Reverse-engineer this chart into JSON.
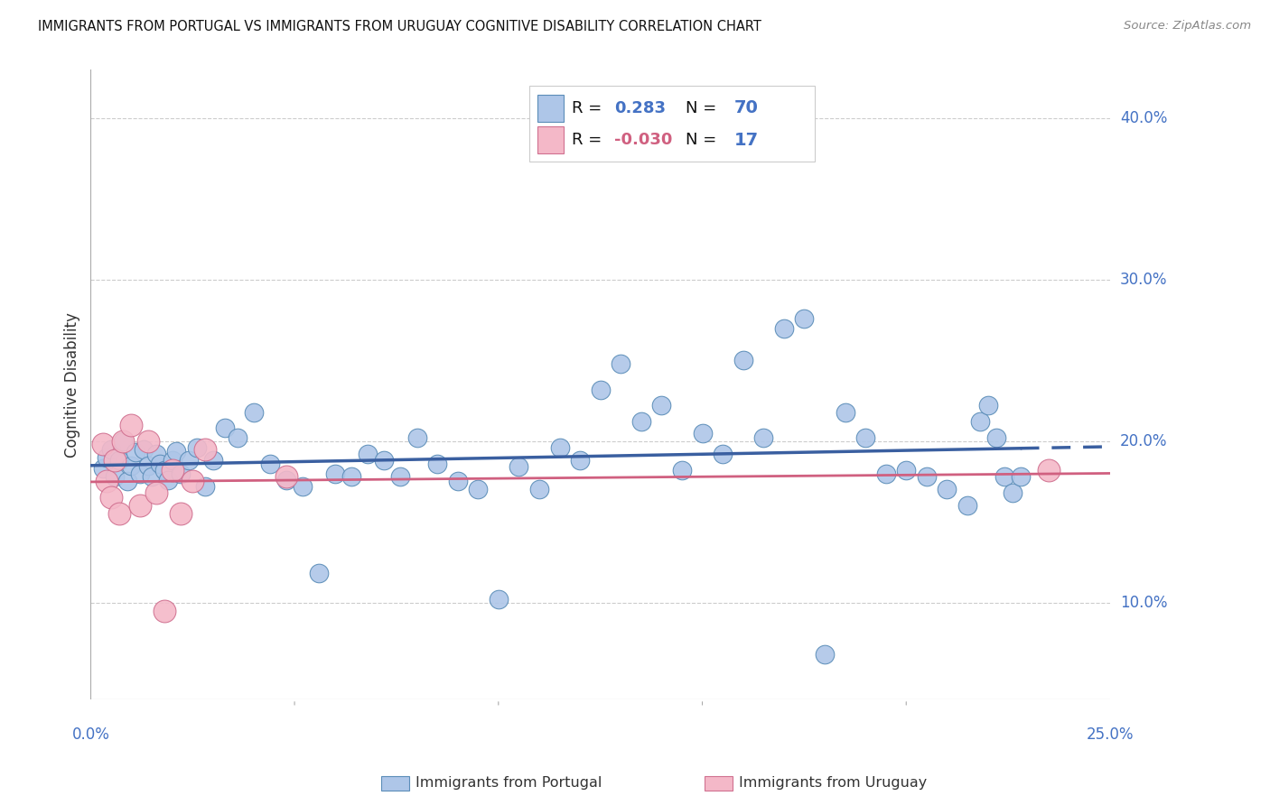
{
  "title": "IMMIGRANTS FROM PORTUGAL VS IMMIGRANTS FROM URUGUAY COGNITIVE DISABILITY CORRELATION CHART",
  "source": "Source: ZipAtlas.com",
  "ylabel": "Cognitive Disability",
  "ytick_vals": [
    0.1,
    0.2,
    0.3,
    0.4
  ],
  "ytick_labels": [
    "10.0%",
    "20.0%",
    "30.0%",
    "40.0%"
  ],
  "xmin": 0.0,
  "xmax": 0.25,
  "ymin": 0.04,
  "ymax": 0.43,
  "legend_label1": "Immigrants from Portugal",
  "legend_label2": "Immigrants from Uruguay",
  "R1": "0.283",
  "N1": "70",
  "R2": "-0.030",
  "N2": "17",
  "color_portugal_fill": "#aec6e8",
  "color_portugal_edge": "#5b8db8",
  "color_uruguay_fill": "#f4b8c8",
  "color_uruguay_edge": "#d07090",
  "color_line1": "#3a5fa0",
  "color_line2": "#d06080",
  "color_axis_text": "#4472c4",
  "color_grid": "#cccccc",
  "color_border": "#aaaaaa",
  "portugal_x": [
    0.003,
    0.004,
    0.005,
    0.006,
    0.007,
    0.008,
    0.009,
    0.01,
    0.011,
    0.012,
    0.013,
    0.014,
    0.015,
    0.016,
    0.017,
    0.018,
    0.019,
    0.02,
    0.021,
    0.022,
    0.024,
    0.026,
    0.028,
    0.03,
    0.033,
    0.036,
    0.04,
    0.044,
    0.048,
    0.052,
    0.056,
    0.06,
    0.064,
    0.068,
    0.072,
    0.076,
    0.08,
    0.085,
    0.09,
    0.095,
    0.1,
    0.105,
    0.11,
    0.115,
    0.12,
    0.125,
    0.13,
    0.135,
    0.14,
    0.145,
    0.15,
    0.155,
    0.16,
    0.165,
    0.17,
    0.175,
    0.18,
    0.185,
    0.19,
    0.195,
    0.2,
    0.205,
    0.21,
    0.215,
    0.218,
    0.22,
    0.222,
    0.224,
    0.226,
    0.228
  ],
  "portugal_y": [
    0.183,
    0.19,
    0.195,
    0.178,
    0.188,
    0.2,
    0.175,
    0.185,
    0.193,
    0.18,
    0.195,
    0.185,
    0.178,
    0.192,
    0.186,
    0.182,
    0.176,
    0.188,
    0.194,
    0.18,
    0.188,
    0.196,
    0.172,
    0.188,
    0.208,
    0.202,
    0.218,
    0.186,
    0.176,
    0.172,
    0.118,
    0.18,
    0.178,
    0.192,
    0.188,
    0.178,
    0.202,
    0.186,
    0.175,
    0.17,
    0.102,
    0.184,
    0.17,
    0.196,
    0.188,
    0.232,
    0.248,
    0.212,
    0.222,
    0.182,
    0.205,
    0.192,
    0.25,
    0.202,
    0.27,
    0.276,
    0.068,
    0.218,
    0.202,
    0.18,
    0.182,
    0.178,
    0.17,
    0.16,
    0.212,
    0.222,
    0.202,
    0.178,
    0.168,
    0.178
  ],
  "uruguay_x": [
    0.003,
    0.004,
    0.005,
    0.006,
    0.007,
    0.008,
    0.01,
    0.012,
    0.014,
    0.016,
    0.018,
    0.02,
    0.022,
    0.025,
    0.028,
    0.048,
    0.235
  ],
  "uruguay_y": [
    0.198,
    0.175,
    0.165,
    0.188,
    0.155,
    0.2,
    0.21,
    0.16,
    0.2,
    0.168,
    0.095,
    0.182,
    0.155,
    0.175,
    0.195,
    0.178,
    0.182
  ]
}
